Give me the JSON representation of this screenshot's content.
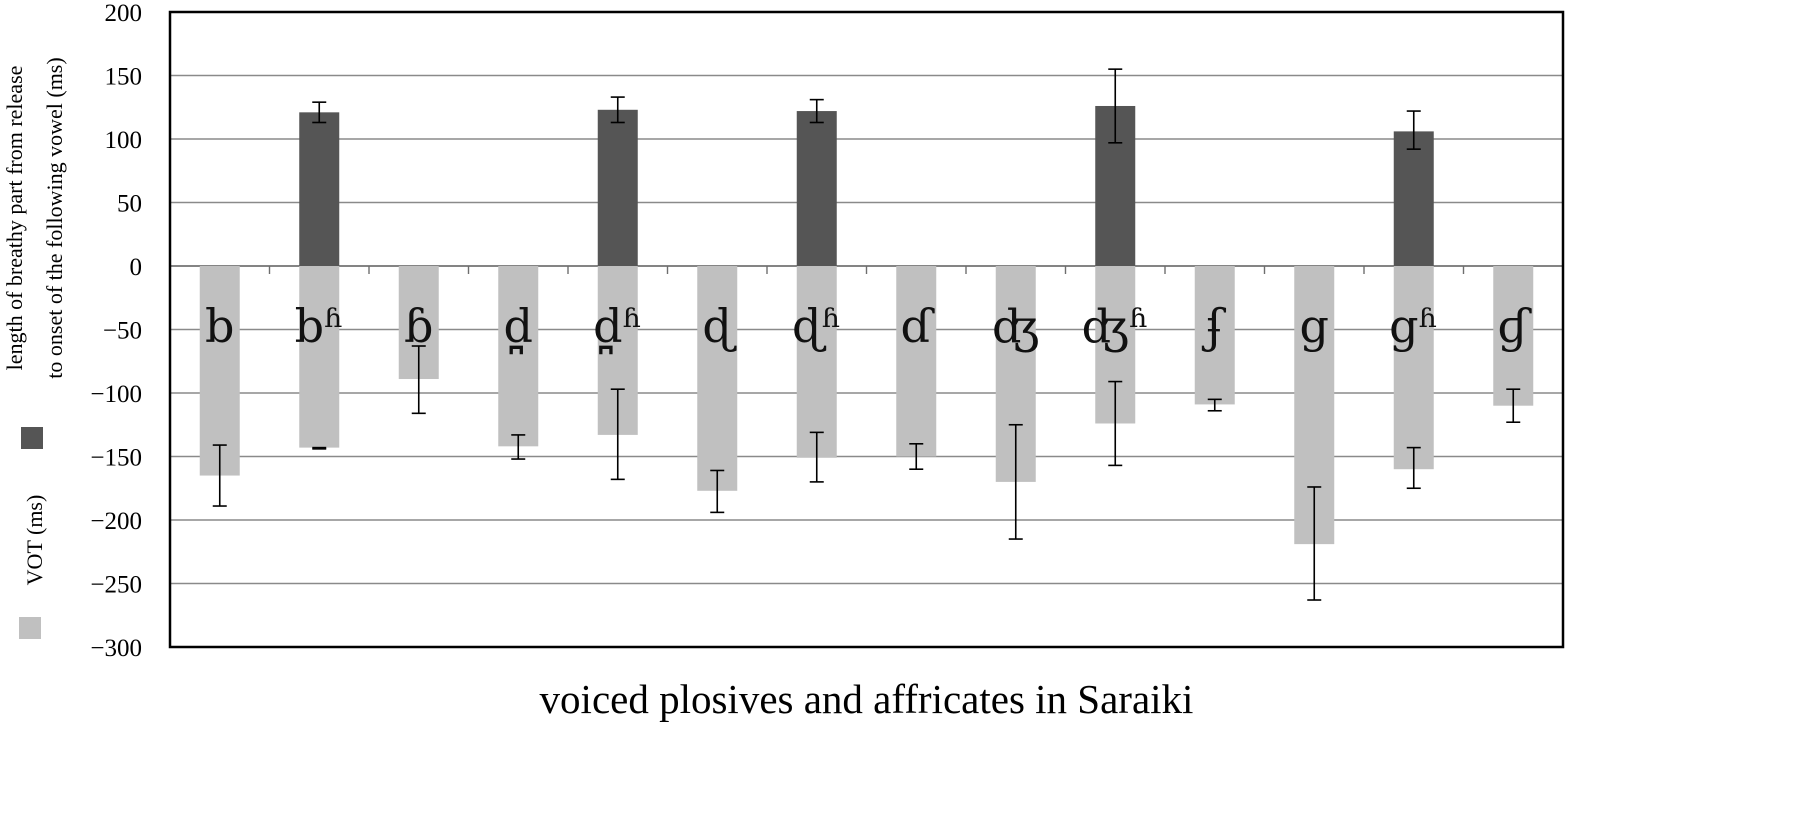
{
  "chart_data": {
    "type": "bar",
    "title": "",
    "xlabel": "voiced plosives and affricates in Saraiki",
    "ylabel_lines": [
      "length of breathy part from release",
      "to onset of the following vowel (ms)"
    ],
    "ylabel2": "VOT (ms)",
    "ylim": [
      -300,
      200
    ],
    "yticks": [
      "200",
      "150",
      "100",
      "50",
      "0",
      "−50",
      "−100",
      "−150",
      "−200",
      "−250",
      "−300"
    ],
    "ytick_values": [
      200,
      150,
      100,
      50,
      0,
      -50,
      -100,
      -150,
      -200,
      -250,
      -300
    ],
    "grid": true,
    "categories": [
      "b",
      "bʱ",
      "ɓ",
      "d̪",
      "d̪ʱ",
      "ɖ",
      "ɖʱ",
      "ɗ",
      "ʤ",
      "ʤʱ",
      "ʄ",
      "g",
      "gʱ",
      "ɠ"
    ],
    "series": [
      {
        "key": "breathy",
        "color": "#555555",
        "values": [
          null,
          121,
          null,
          null,
          123,
          null,
          122,
          null,
          null,
          126,
          null,
          null,
          106,
          null
        ],
        "err_low": [
          null,
          113,
          null,
          null,
          113,
          null,
          113,
          null,
          null,
          97,
          null,
          null,
          92,
          null
        ],
        "err_high": [
          null,
          129,
          null,
          null,
          133,
          null,
          131,
          null,
          null,
          155,
          null,
          null,
          122,
          null
        ]
      },
      {
        "key": "vot",
        "color": "#c0c0c0",
        "values": [
          -165,
          -143,
          -89,
          -142,
          -133,
          -177,
          -151,
          -150,
          -170,
          -124,
          -109,
          -219,
          -160,
          -110
        ],
        "err_low": [
          -189,
          -144,
          -116,
          -152,
          -168,
          -194,
          -170,
          -160,
          -215,
          -157,
          -114,
          -263,
          -175,
          -123
        ],
        "err_high": [
          -141,
          -143,
          -63,
          -133,
          -97,
          -161,
          -131,
          -140,
          -125,
          -91,
          -105,
          -174,
          -143,
          -97
        ]
      }
    ]
  }
}
